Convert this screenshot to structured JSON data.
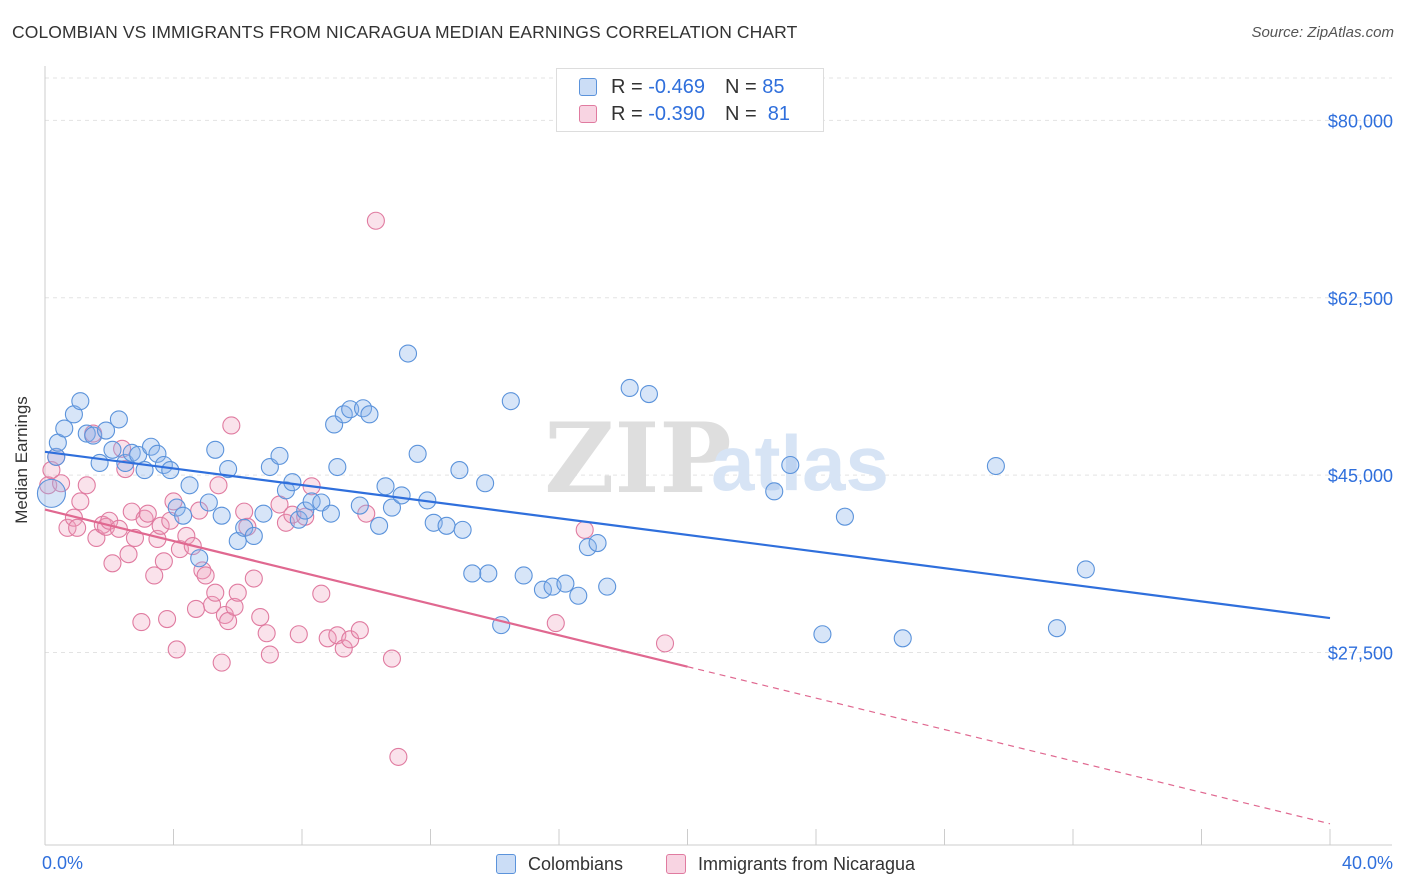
{
  "title": "COLOMBIAN VS IMMIGRANTS FROM NICARAGUA MEDIAN EARNINGS CORRELATION CHART",
  "source": "Source: ZipAtlas.com",
  "watermark": {
    "zip": "ZIP",
    "atlas": "atlas"
  },
  "legend_top": [
    {
      "r_label": "R =",
      "r_value": "-0.469",
      "n_label": "N =",
      "n_value": "85"
    },
    {
      "r_label": "R =",
      "r_value": "-0.390",
      "n_label": "N =",
      "n_value": "81"
    }
  ],
  "legend_bottom": [
    "Colombians",
    "Immigrants from Nicaragua"
  ],
  "colors": {
    "blue": "#5b93db",
    "blue_fill": "rgba(140,180,235,0.35)",
    "blue_line": "#2f6fdc",
    "pink": "#e07ba0",
    "pink_fill": "rgba(240,160,190,0.30)",
    "pink_line": "#e06890",
    "grid": "#e3e3e3",
    "tick_text": "#2f6fdc"
  },
  "chart_data": {
    "type": "scatter",
    "title": "COLOMBIAN VS IMMIGRANTS FROM NICARAGUA MEDIAN EARNINGS CORRELATION CHART",
    "xlabel": "",
    "ylabel": "Median Earnings",
    "xlim": [
      0,
      40
    ],
    "ylim": [
      9000,
      83000
    ],
    "x_tick_labels": [
      "0.0%",
      "40.0%"
    ],
    "y_ticks": [
      27500,
      45000,
      62500,
      80000
    ],
    "y_tick_labels": [
      "$27,500",
      "$45,000",
      "$62,500",
      "$80,000"
    ],
    "grid": true,
    "legend": "top-center",
    "series": [
      {
        "name": "Colombians",
        "r": -0.469,
        "n": 85,
        "trend": {
          "x0": 0,
          "y0": 47300,
          "x1": 40,
          "y1": 30900,
          "dashed_from_x": null
        },
        "points": [
          [
            0.2,
            43200
          ],
          [
            0.35,
            46800
          ],
          [
            0.4,
            48200
          ],
          [
            0.6,
            49600
          ],
          [
            0.9,
            51000
          ],
          [
            1.1,
            52300
          ],
          [
            1.3,
            49100
          ],
          [
            1.5,
            48900
          ],
          [
            1.7,
            46200
          ],
          [
            1.9,
            49400
          ],
          [
            2.1,
            47500
          ],
          [
            2.3,
            50500
          ],
          [
            2.5,
            46200
          ],
          [
            2.7,
            47200
          ],
          [
            2.9,
            47000
          ],
          [
            3.1,
            45500
          ],
          [
            3.3,
            47800
          ],
          [
            3.5,
            47100
          ],
          [
            3.7,
            46000
          ],
          [
            3.9,
            45500
          ],
          [
            4.1,
            41800
          ],
          [
            4.3,
            41000
          ],
          [
            4.5,
            44000
          ],
          [
            4.8,
            36800
          ],
          [
            5.1,
            42300
          ],
          [
            5.3,
            47500
          ],
          [
            5.5,
            41000
          ],
          [
            5.7,
            45600
          ],
          [
            6.0,
            38500
          ],
          [
            6.2,
            39800
          ],
          [
            6.5,
            39000
          ],
          [
            6.8,
            41200
          ],
          [
            7.0,
            45800
          ],
          [
            7.3,
            46900
          ],
          [
            7.5,
            43500
          ],
          [
            7.7,
            44300
          ],
          [
            7.9,
            40600
          ],
          [
            8.1,
            41500
          ],
          [
            8.3,
            42400
          ],
          [
            8.6,
            42300
          ],
          [
            8.9,
            41200
          ],
          [
            9.0,
            50000
          ],
          [
            9.1,
            45800
          ],
          [
            9.3,
            51000
          ],
          [
            9.5,
            51500
          ],
          [
            9.8,
            42000
          ],
          [
            9.9,
            51600
          ],
          [
            10.1,
            51000
          ],
          [
            10.4,
            40000
          ],
          [
            10.6,
            43900
          ],
          [
            10.8,
            41800
          ],
          [
            11.1,
            43000
          ],
          [
            11.3,
            57000
          ],
          [
            11.6,
            47100
          ],
          [
            11.9,
            42500
          ],
          [
            12.1,
            40300
          ],
          [
            12.5,
            40000
          ],
          [
            12.9,
            45500
          ],
          [
            13.0,
            39600
          ],
          [
            13.3,
            35300
          ],
          [
            13.7,
            44200
          ],
          [
            13.8,
            35300
          ],
          [
            14.2,
            30200
          ],
          [
            14.5,
            52300
          ],
          [
            14.9,
            35100
          ],
          [
            15.5,
            33700
          ],
          [
            15.8,
            34000
          ],
          [
            16.2,
            34300
          ],
          [
            16.6,
            33100
          ],
          [
            16.9,
            37900
          ],
          [
            17.2,
            38300
          ],
          [
            17.5,
            34000
          ],
          [
            18.2,
            53600
          ],
          [
            18.8,
            53000
          ],
          [
            22.7,
            43400
          ],
          [
            23.2,
            46000
          ],
          [
            24.2,
            29300
          ],
          [
            24.9,
            40900
          ],
          [
            26.7,
            28900
          ],
          [
            29.6,
            45900
          ],
          [
            31.5,
            29900
          ],
          [
            32.4,
            35700
          ]
        ]
      },
      {
        "name": "Immigrants from Nicaragua",
        "r": -0.39,
        "n": 81,
        "trend": {
          "x0": 0,
          "y0": 41600,
          "x1": 40,
          "y1": 10600,
          "dashed_from_x": 20
        },
        "points": [
          [
            0.1,
            44000
          ],
          [
            0.2,
            45500
          ],
          [
            0.35,
            46800
          ],
          [
            0.5,
            44200
          ],
          [
            0.7,
            39800
          ],
          [
            0.9,
            40800
          ],
          [
            1.0,
            39800
          ],
          [
            1.1,
            42400
          ],
          [
            1.3,
            44000
          ],
          [
            1.5,
            49100
          ],
          [
            1.6,
            38800
          ],
          [
            1.8,
            40100
          ],
          [
            1.9,
            39900
          ],
          [
            2.0,
            40500
          ],
          [
            2.1,
            36300
          ],
          [
            2.3,
            39700
          ],
          [
            2.4,
            47600
          ],
          [
            2.5,
            45600
          ],
          [
            2.6,
            37200
          ],
          [
            2.7,
            41400
          ],
          [
            2.8,
            38800
          ],
          [
            3.0,
            30500
          ],
          [
            3.1,
            40700
          ],
          [
            3.2,
            41200
          ],
          [
            3.4,
            35100
          ],
          [
            3.5,
            38700
          ],
          [
            3.6,
            40000
          ],
          [
            3.7,
            36500
          ],
          [
            3.8,
            30800
          ],
          [
            3.9,
            40500
          ],
          [
            4.0,
            42400
          ],
          [
            4.1,
            27800
          ],
          [
            4.2,
            37700
          ],
          [
            4.4,
            39000
          ],
          [
            4.6,
            38000
          ],
          [
            4.7,
            31800
          ],
          [
            4.8,
            41500
          ],
          [
            4.9,
            35600
          ],
          [
            5.0,
            35100
          ],
          [
            5.2,
            32200
          ],
          [
            5.3,
            33400
          ],
          [
            5.4,
            44000
          ],
          [
            5.5,
            26500
          ],
          [
            5.6,
            31200
          ],
          [
            5.7,
            30600
          ],
          [
            5.8,
            49900
          ],
          [
            5.9,
            32000
          ],
          [
            6.0,
            33400
          ],
          [
            6.2,
            41400
          ],
          [
            6.3,
            39900
          ],
          [
            6.5,
            34800
          ],
          [
            6.7,
            31000
          ],
          [
            6.9,
            29400
          ],
          [
            7.0,
            27300
          ],
          [
            7.3,
            42100
          ],
          [
            7.5,
            40300
          ],
          [
            7.7,
            41100
          ],
          [
            7.9,
            29300
          ],
          [
            8.1,
            40900
          ],
          [
            8.3,
            43900
          ],
          [
            8.6,
            33300
          ],
          [
            8.8,
            28900
          ],
          [
            9.1,
            29200
          ],
          [
            9.3,
            27900
          ],
          [
            9.5,
            28800
          ],
          [
            9.8,
            29700
          ],
          [
            10.0,
            41200
          ],
          [
            10.3,
            70100
          ],
          [
            10.8,
            26900
          ],
          [
            11.0,
            17200
          ],
          [
            15.9,
            30400
          ],
          [
            16.8,
            39600
          ],
          [
            19.3,
            28400
          ]
        ]
      }
    ]
  }
}
